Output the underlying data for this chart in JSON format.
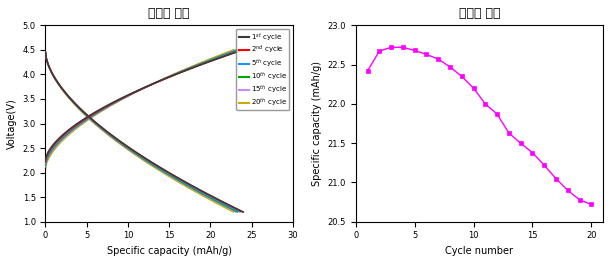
{
  "left_title": "충방전 곡선",
  "right_title": "사이클 특성",
  "left_xlabel": "Specific capacity (mAh/g)",
  "left_ylabel": "Voltage(V)",
  "right_xlabel": "Cycle number",
  "right_ylabel": "Specific capacity (mAh/g)",
  "left_xlim": [
    0,
    30
  ],
  "left_ylim": [
    1.0,
    5.0
  ],
  "left_xticks": [
    0,
    5,
    10,
    15,
    20,
    25,
    30
  ],
  "left_yticks": [
    1.0,
    1.5,
    2.0,
    2.5,
    3.0,
    3.5,
    4.0,
    4.5,
    5.0
  ],
  "right_xlim": [
    0,
    21
  ],
  "right_ylim": [
    20.5,
    23.0
  ],
  "right_xticks": [
    0,
    5,
    10,
    15,
    20
  ],
  "right_yticks": [
    20.5,
    21.0,
    21.5,
    22.0,
    22.5,
    23.0
  ],
  "cycle_colors": [
    "#3a3a3a",
    "#ff0000",
    "#1e90ff",
    "#00aa00",
    "#cc88ff",
    "#ccaa00"
  ],
  "cycle_labels": [
    "1$^{st}$ cycle",
    "2$^{nd}$ cycle",
    "5$^{th}$ cycle",
    "10$^{th}$ cycle",
    "15$^{th}$ cycle",
    "20$^{th}$ cycle"
  ],
  "cycle_capacities": [
    24.0,
    23.9,
    23.6,
    23.3,
    23.1,
    22.8
  ],
  "chg_start_v": [
    2.25,
    2.22,
    2.18,
    2.15,
    2.12,
    2.08
  ],
  "dis_start_v": [
    4.45,
    4.45,
    4.45,
    4.45,
    4.45,
    4.45
  ],
  "dis_end_v": [
    1.2,
    1.2,
    1.2,
    1.2,
    1.2,
    1.2
  ],
  "right_cycles": [
    1,
    2,
    3,
    4,
    5,
    6,
    7,
    8,
    9,
    10,
    11,
    12,
    13,
    14,
    15,
    16,
    17,
    18,
    19,
    20
  ],
  "right_capacities": [
    22.42,
    22.67,
    22.72,
    22.72,
    22.68,
    22.63,
    22.57,
    22.47,
    22.35,
    22.2,
    22.0,
    21.87,
    21.63,
    21.5,
    21.38,
    21.22,
    21.05,
    20.9,
    20.78,
    20.72
  ],
  "magenta": "#ff00ff",
  "background": "#ffffff"
}
